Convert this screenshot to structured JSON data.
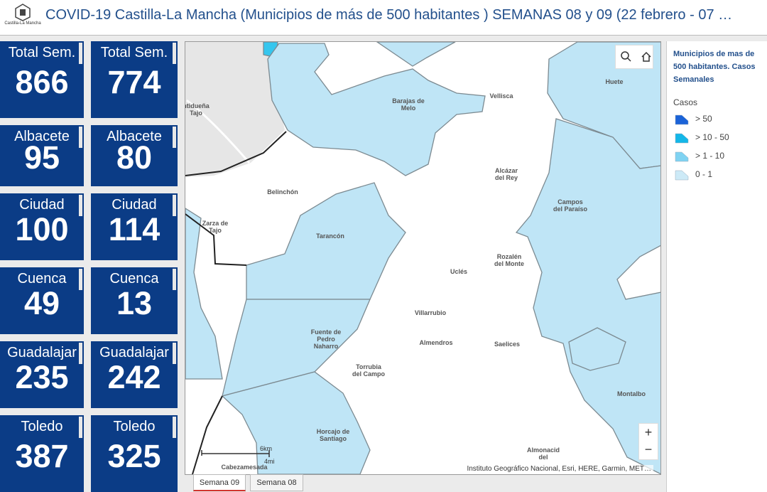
{
  "header": {
    "logo_text": "Castilla-La Mancha",
    "title": "COVID-19 Castilla-La Mancha (Municipios de más de 500 habitantes ) SEMANAS 08 y 09 (22 febrero - 07 …"
  },
  "columns": [
    [
      {
        "label": "Total Sem.",
        "value": 866
      },
      {
        "label": "Albacete",
        "value": 95
      },
      {
        "label": "Ciudad",
        "value": 100
      },
      {
        "label": "Cuenca",
        "value": 49
      },
      {
        "label": "Guadalajar",
        "value": 235
      },
      {
        "label": "Toledo",
        "value": 387
      }
    ],
    [
      {
        "label": "Total Sem.",
        "value": 774
      },
      {
        "label": "Albacete",
        "value": 80
      },
      {
        "label": "Ciudad",
        "value": 114
      },
      {
        "label": "Cuenca",
        "value": 13
      },
      {
        "label": "Guadalajar",
        "value": 242
      },
      {
        "label": "Toledo",
        "value": 325
      }
    ]
  ],
  "map": {
    "places": [
      "ntidueña\nTajo",
      "Barajas de\nMelo",
      "Vellisca",
      "Huete",
      "Alcázar\ndel Rey",
      "Belinchón",
      "Campos\ndel Paraíso",
      "Zarza de\nTajo",
      "Tarancón",
      "Rozalén\ndel Monte",
      "Uclés",
      "Villarrubio",
      "Fuente de\nPedro\nNaharro",
      "Almendros",
      "Saelices",
      "Torrubia\ndel Campo",
      "Montalbo",
      "Horcajo de\nSantiago",
      "Almonacid\ndel",
      "Cabezamesada"
    ],
    "scale_km": "6km",
    "scale_mi": "4mi",
    "attribution": "Instituto Geográfico Nacional, Esri, HERE, Garmin, MET…",
    "zoom_in": "+",
    "zoom_out": "−"
  },
  "legend": {
    "title": "Municipios de mas de 500 habitantes. Casos Semanales",
    "subtitle": "Casos",
    "items": [
      "> 50",
      "> 10 - 50",
      "> 1 - 10",
      "0 - 1"
    ]
  },
  "tabs": [
    "Semana 09",
    "Semana 08"
  ]
}
